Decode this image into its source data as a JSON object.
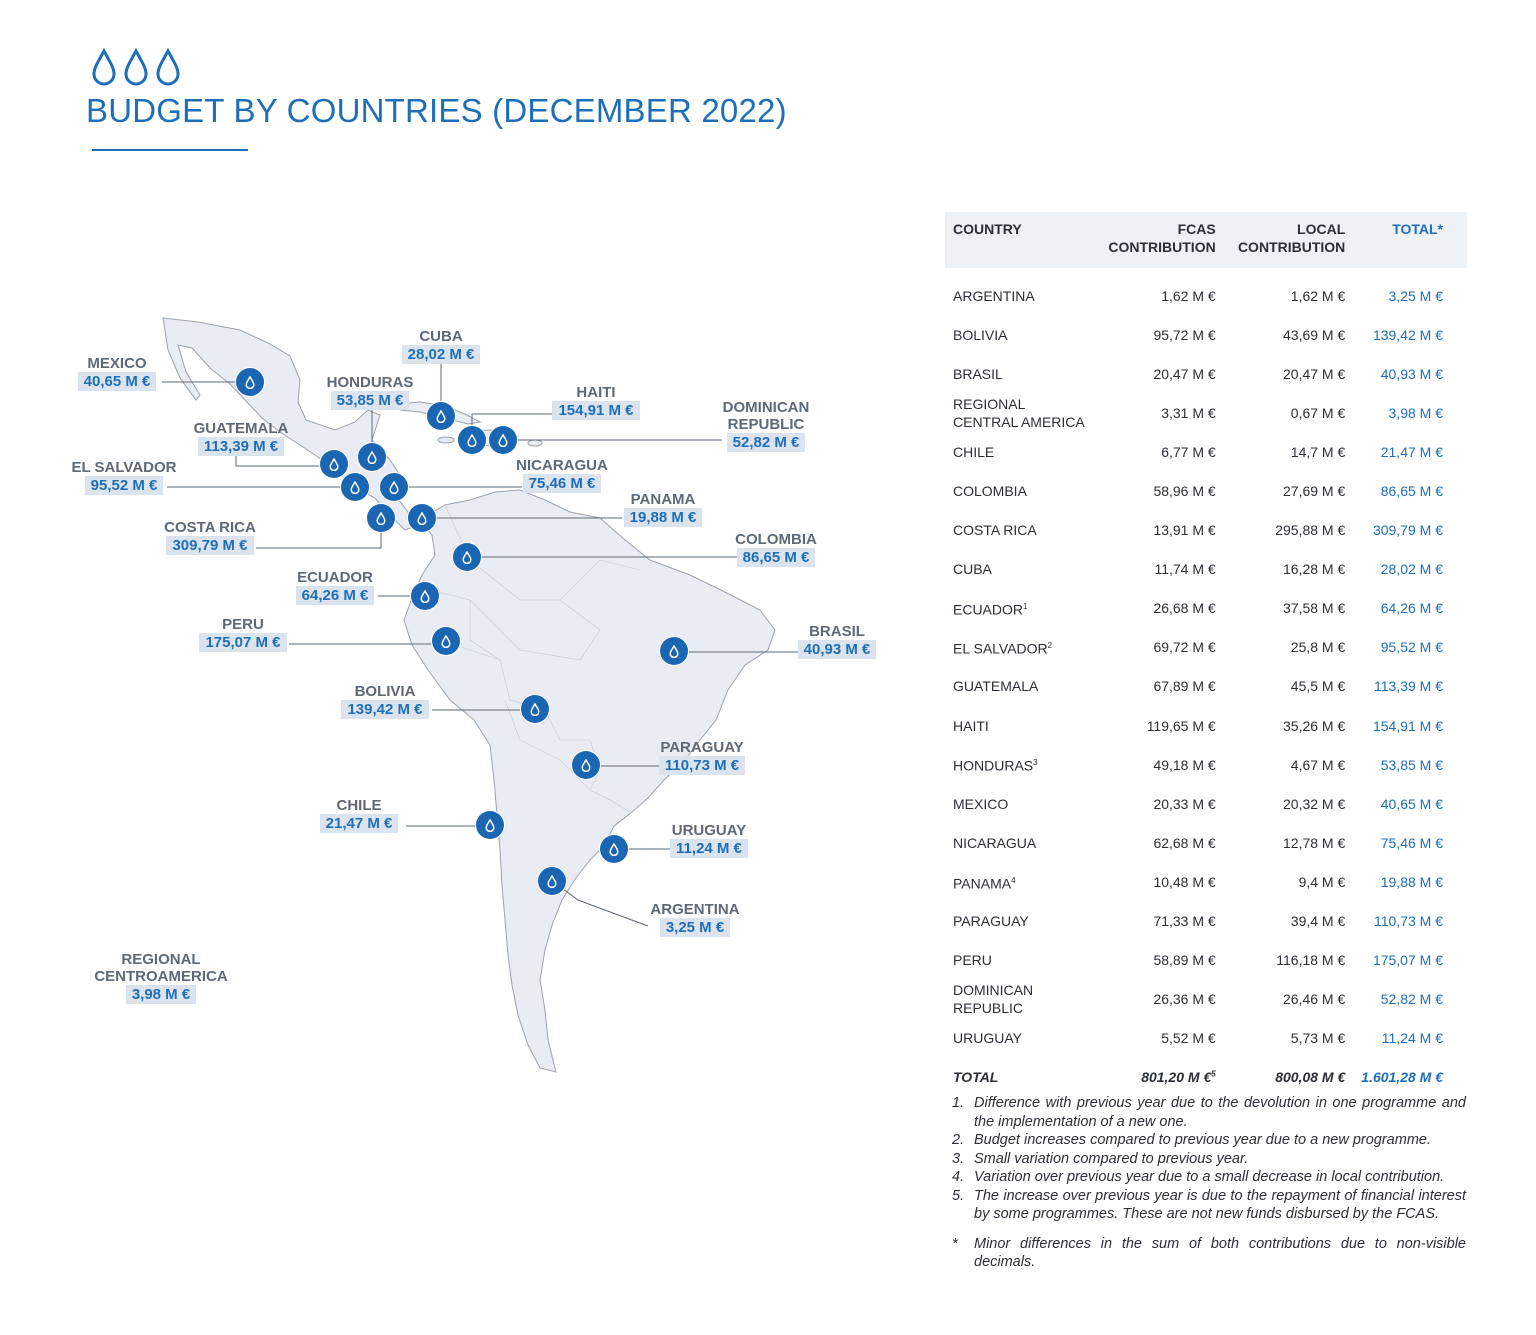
{
  "page": {
    "title": "BUDGET BY COUNTRIES (DECEMBER 2022)",
    "accent_color": "#1f6fb8",
    "header_icon": "three-water-drops-icon"
  },
  "map": {
    "region": "Latin America",
    "land_color": "#e9edf3",
    "marker_color": "#1a66b3",
    "marker_icon": "water-drop-icon",
    "labels": [
      {
        "key": "mexico",
        "name": "MEXICO",
        "value": "40,65 M €"
      },
      {
        "key": "cuba",
        "name": "CUBA",
        "value": "28,02 M €"
      },
      {
        "key": "honduras",
        "name": "HONDURAS",
        "value": "53,85 M €"
      },
      {
        "key": "haiti",
        "name": "HAITI",
        "value": "154,91 M €"
      },
      {
        "key": "dominican-republic",
        "name": "DOMINICAN REPUBLIC",
        "value": "52,82 M €"
      },
      {
        "key": "guatemala",
        "name": "GUATEMALA",
        "value": "113,39 M €"
      },
      {
        "key": "el-salvador",
        "name": "EL SALVADOR",
        "value": "95,52 M €"
      },
      {
        "key": "nicaragua",
        "name": "NICARAGUA",
        "value": "75,46 M €"
      },
      {
        "key": "panama",
        "name": "PANAMA",
        "value": "19,88 M €"
      },
      {
        "key": "costa-rica",
        "name": "COSTA RICA",
        "value": "309,79 M €"
      },
      {
        "key": "colombia",
        "name": "COLOMBIA",
        "value": "86,65 M €"
      },
      {
        "key": "ecuador",
        "name": "ECUADOR",
        "value": "64,26 M €"
      },
      {
        "key": "peru",
        "name": "PERU",
        "value": "175,07 M €"
      },
      {
        "key": "brasil",
        "name": "BRASIL",
        "value": "40,93 M €"
      },
      {
        "key": "bolivia",
        "name": "BOLIVIA",
        "value": "139,42 M €"
      },
      {
        "key": "paraguay",
        "name": "PARAGUAY",
        "value": "110,73 M €"
      },
      {
        "key": "chile",
        "name": "CHILE",
        "value": "21,47 M €"
      },
      {
        "key": "uruguay",
        "name": "URUGUAY",
        "value": "11,24 M €"
      },
      {
        "key": "argentina",
        "name": "ARGENTINA",
        "value": "3,25 M €"
      },
      {
        "key": "regional",
        "name": "REGIONAL CENTROAMERICA",
        "value": "3,98 M €"
      }
    ]
  },
  "table": {
    "headers": {
      "country": "COUNTRY",
      "fcas": "FCAS CONTRIBUTION",
      "local": "LOCAL CONTRIBUTION",
      "total": "TOTAL*"
    },
    "rows": [
      {
        "country": "ARGENTINA",
        "note": "",
        "fcas": "1,62 M €",
        "local": "1,62 M €",
        "total": "3,25 M €"
      },
      {
        "country": "BOLIVIA",
        "note": "",
        "fcas": "95,72 M €",
        "local": "43,69 M €",
        "total": "139,42 M €"
      },
      {
        "country": "BRASIL",
        "note": "",
        "fcas": "20,47 M €",
        "local": "20,47 M €",
        "total": "40,93 M €"
      },
      {
        "country": "REGIONAL CENTRAL AMERICA",
        "note": "",
        "fcas": "3,31 M €",
        "local": "0,67 M €",
        "total": "3,98 M €"
      },
      {
        "country": "CHILE",
        "note": "",
        "fcas": "6,77 M €",
        "local": "14,7 M €",
        "total": "21,47 M €"
      },
      {
        "country": "COLOMBIA",
        "note": "",
        "fcas": "58,96 M €",
        "local": "27,69 M €",
        "total": "86,65 M €"
      },
      {
        "country": "COSTA RICA",
        "note": "",
        "fcas": "13,91 M €",
        "local": "295,88 M €",
        "total": "309,79 M €"
      },
      {
        "country": "CUBA",
        "note": "",
        "fcas": "11,74 M €",
        "local": "16,28 M €",
        "total": "28,02 M €"
      },
      {
        "country": "ECUADOR",
        "note": "1",
        "fcas": "26,68 M €",
        "local": "37,58 M €",
        "total": "64,26 M €"
      },
      {
        "country": "EL SALVADOR",
        "note": "2",
        "fcas": "69,72 M €",
        "local": "25,8 M €",
        "total": "95,52 M €"
      },
      {
        "country": "GUATEMALA",
        "note": "",
        "fcas": "67,89 M €",
        "local": "45,5 M €",
        "total": "113,39 M €"
      },
      {
        "country": "HAITI",
        "note": "",
        "fcas": "119,65 M €",
        "local": "35,26 M €",
        "total": "154,91 M €"
      },
      {
        "country": "HONDURAS",
        "note": "3",
        "fcas": "49,18 M €",
        "local": "4,67 M €",
        "total": "53,85 M €"
      },
      {
        "country": "MEXICO",
        "note": "",
        "fcas": "20,33 M €",
        "local": "20,32 M €",
        "total": "40,65 M €"
      },
      {
        "country": "NICARAGUA",
        "note": "",
        "fcas": "62,68 M €",
        "local": "12,78 M €",
        "total": "75,46 M €"
      },
      {
        "country": "PANAMA",
        "note": "4",
        "fcas": "10,48 M €",
        "local": "9,4 M €",
        "total": "19,88 M €"
      },
      {
        "country": "PARAGUAY",
        "note": "",
        "fcas": "71,33 M €",
        "local": "39,4 M €",
        "total": "110,73 M €"
      },
      {
        "country": "PERU",
        "note": "",
        "fcas": "58,89 M €",
        "local": "116,18 M €",
        "total": "175,07 M €"
      },
      {
        "country": "DOMINICAN REPUBLIC",
        "note": "",
        "fcas": "26,36 M €",
        "local": "26,46 M €",
        "total": "52,82 M €"
      },
      {
        "country": "URUGUAY",
        "note": "",
        "fcas": "5,52 M €",
        "local": "5,73 M €",
        "total": "11,24 M €"
      }
    ],
    "total_row": {
      "label": "TOTAL",
      "fcas": "801,20 M €",
      "fcas_note": "5",
      "local": "800,08 M €",
      "total": "1.601,28 M €"
    }
  },
  "footnotes": [
    {
      "mark": "1.",
      "text": "Difference with previous year due to the devolution in one programme and the implementation of a new one."
    },
    {
      "mark": "2.",
      "text": "Budget increases compared to previous year due to a new programme."
    },
    {
      "mark": "3.",
      "text": "Small variation compared to previous year."
    },
    {
      "mark": "4.",
      "text": "Variation over previous year due to a small decrease in local contribution."
    },
    {
      "mark": "5.",
      "text": "The increase over previous year is due to the repayment of financial interest by some programmes. These are not new funds disbursed by the FCAS."
    },
    {
      "mark": "*",
      "text": "Minor differences in the sum of both contributions due to non-visible decimals."
    }
  ]
}
